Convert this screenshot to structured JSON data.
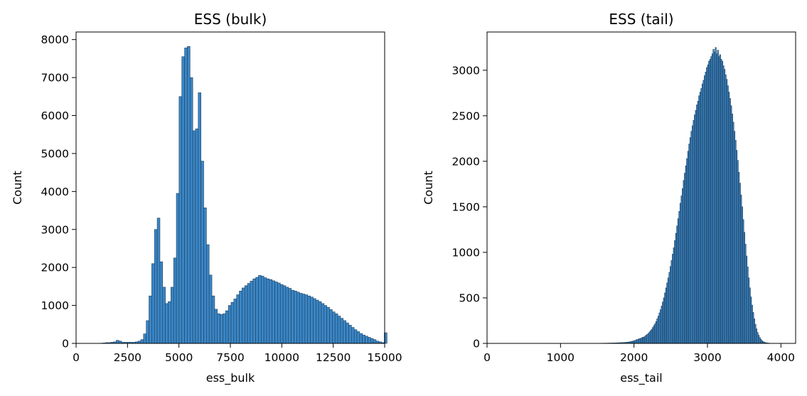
{
  "colors": {
    "bar_fill": "#3a86c6",
    "bar_edge": "#1f3f5c",
    "axis": "#000000",
    "background": "#ffffff"
  },
  "chart_data": [
    {
      "type": "bar",
      "title": "ESS (bulk)",
      "xlabel": "ess_bulk",
      "ylabel": "Count",
      "xlim": [
        0,
        15000
      ],
      "ylim": [
        0,
        8200
      ],
      "xticks": [
        0,
        2500,
        5000,
        7500,
        10000,
        12500,
        15000
      ],
      "yticks": [
        0,
        1000,
        2000,
        3000,
        4000,
        5000,
        6000,
        7000,
        8000
      ],
      "grid": false,
      "bin_start": 1150,
      "bin_width": 133,
      "values": [
        5,
        10,
        20,
        20,
        30,
        40,
        80,
        60,
        30,
        30,
        30,
        30,
        30,
        40,
        60,
        100,
        250,
        600,
        1250,
        2100,
        3000,
        3300,
        2150,
        1480,
        1050,
        1100,
        1480,
        2250,
        3950,
        6500,
        7550,
        7780,
        7820,
        7000,
        5600,
        5650,
        6600,
        4800,
        3570,
        2600,
        1800,
        1250,
        900,
        780,
        760,
        780,
        860,
        1000,
        1080,
        1170,
        1280,
        1380,
        1460,
        1520,
        1580,
        1640,
        1700,
        1740,
        1790,
        1770,
        1730,
        1700,
        1680,
        1650,
        1620,
        1590,
        1550,
        1520,
        1480,
        1450,
        1400,
        1380,
        1350,
        1320,
        1300,
        1280,
        1250,
        1220,
        1180,
        1140,
        1100,
        1050,
        1000,
        950,
        890,
        830,
        780,
        720,
        660,
        600,
        540,
        480,
        420,
        360,
        310,
        260,
        220,
        190,
        160,
        130,
        100,
        60,
        40,
        20,
        280
      ]
    },
    {
      "type": "bar",
      "title": "ESS (tail)",
      "xlabel": "ess_tail",
      "ylabel": "Count",
      "xlim": [
        0,
        4200
      ],
      "ylim": [
        0,
        3420
      ],
      "xticks": [
        0,
        1000,
        2000,
        3000,
        4000
      ],
      "yticks": [
        0,
        500,
        1000,
        1500,
        2000,
        2500,
        3000
      ],
      "grid": false,
      "bin_start": 1500,
      "bin_width": 15,
      "values": [
        1,
        1,
        1,
        2,
        1,
        2,
        2,
        3,
        2,
        3,
        3,
        4,
        3,
        4,
        5,
        4,
        5,
        6,
        5,
        7,
        8,
        7,
        9,
        10,
        9,
        12,
        11,
        14,
        15,
        17,
        20,
        23,
        25,
        30,
        32,
        40,
        42,
        48,
        52,
        55,
        62,
        68,
        70,
        80,
        90,
        100,
        110,
        125,
        140,
        155,
        175,
        195,
        215,
        240,
        270,
        300,
        335,
        370,
        410,
        455,
        500,
        555,
        610,
        665,
        720,
        780,
        845,
        910,
        980,
        1050,
        1130,
        1210,
        1290,
        1370,
        1450,
        1540,
        1620,
        1700,
        1790,
        1870,
        1950,
        2030,
        2110,
        2190,
        2260,
        2330,
        2390,
        2450,
        2510,
        2560,
        2620,
        2660,
        2720,
        2760,
        2800,
        2850,
        2890,
        2940,
        2980,
        3030,
        3060,
        3100,
        3120,
        3150,
        3180,
        3230,
        3200,
        3250,
        3180,
        3220,
        3150,
        3170,
        3120,
        3100,
        3050,
        3010,
        2950,
        2900,
        2830,
        2760,
        2690,
        2610,
        2520,
        2430,
        2330,
        2230,
        2120,
        2010,
        1880,
        1760,
        1630,
        1500,
        1360,
        1220,
        1090,
        960,
        840,
        720,
        610,
        510,
        420,
        340,
        270,
        210,
        160,
        120,
        90,
        65,
        45,
        30,
        20,
        14,
        9,
        6,
        4,
        3,
        2,
        1,
        1
      ]
    }
  ]
}
